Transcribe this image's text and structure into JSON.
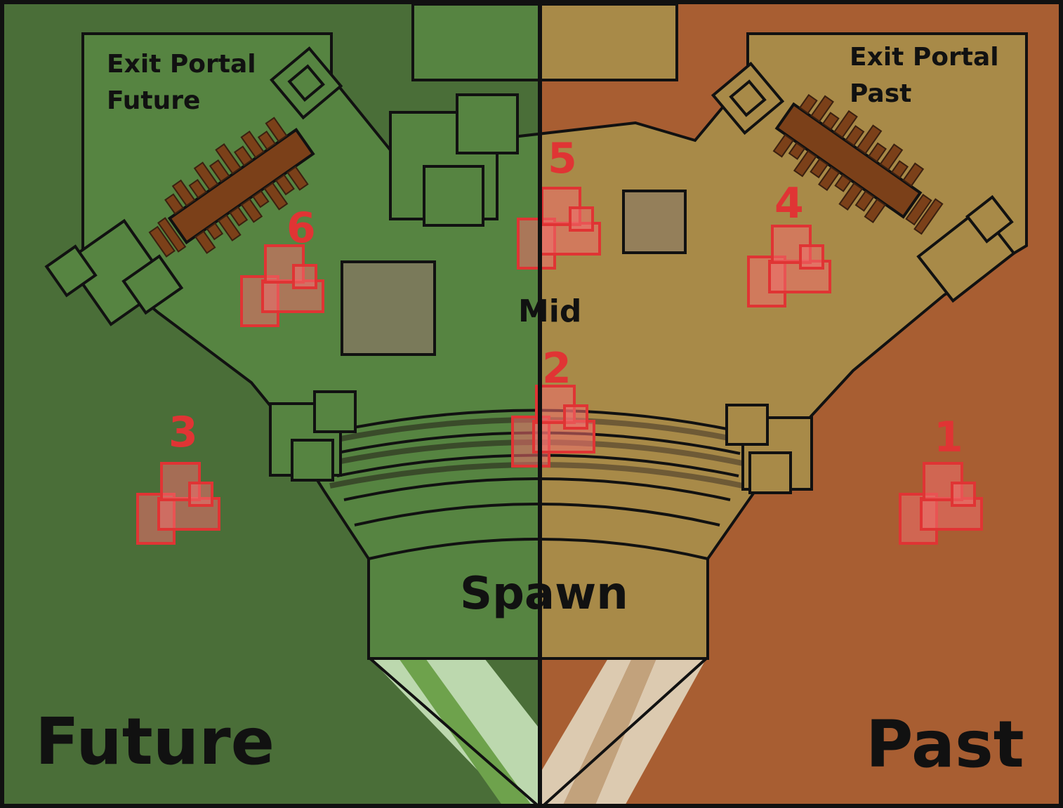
{
  "colors": {
    "future_outer": "#4a6e38",
    "future_inner": "#568441",
    "future_stripe_light": "#bcd8ae",
    "future_stripe_mid": "#6ea24c",
    "past_outer": "#a85e32",
    "past_inner": "#a88a48",
    "past_stripe_light": "#dccab0",
    "past_stripe_mid": "#c2a27c",
    "bridge": "#7b4019",
    "spawn_marker": "#e03434",
    "outline": "#111111",
    "dark_block": "#7a7a5a",
    "sand_block": "#947f5a"
  },
  "labels": {
    "exit_portal_future_line1": "Exit Portal",
    "exit_portal_future_line2": "Future",
    "exit_portal_past_line1": "Exit Portal",
    "exit_portal_past_line2": "Past",
    "mid": "Mid",
    "spawn": "Spawn",
    "future": "Future",
    "past": "Past"
  },
  "spawn_points": [
    {
      "number": "1"
    },
    {
      "number": "2"
    },
    {
      "number": "3"
    },
    {
      "number": "4"
    },
    {
      "number": "5"
    },
    {
      "number": "6"
    }
  ]
}
